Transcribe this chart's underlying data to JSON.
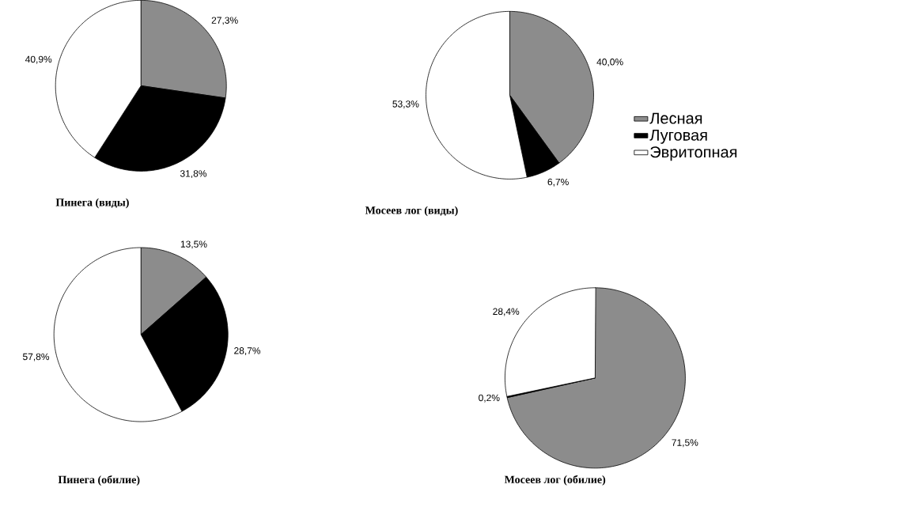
{
  "chart_data": [
    {
      "type": "pie",
      "title": "Пинега (виды)",
      "categories": [
        "Лесная",
        "Луговая",
        "Эвритопная"
      ],
      "values": [
        27.3,
        31.8,
        40.9
      ],
      "value_labels": [
        "27,3%",
        "31,8%",
        "40,9%"
      ],
      "colors": [
        "#8c8c8c",
        "#000000",
        "#ffffff"
      ],
      "legend": "right"
    },
    {
      "type": "pie",
      "title": "Мосеев лог (виды)",
      "categories": [
        null,
        null,
        null
      ],
      "values": [
        40.0,
        6.7,
        53.3
      ],
      "value_labels": [
        "40,0%",
        "6,7%",
        "53,3%"
      ],
      "colors": [
        "#8c8c8c",
        "#000000",
        "#ffffff"
      ]
    },
    {
      "type": "pie",
      "title": "Пинега (обилие)",
      "categories": [
        null,
        null,
        null
      ],
      "values": [
        13.5,
        28.7,
        57.8
      ],
      "value_labels": [
        "13,5%",
        "28,7%",
        "57,8%"
      ],
      "colors": [
        "#8c8c8c",
        "#000000",
        "#ffffff"
      ]
    },
    {
      "type": "pie",
      "title": "Мосеев лог (обилие)",
      "categories": [
        null,
        null,
        null
      ],
      "values": [
        71.5,
        0.2,
        28.4
      ],
      "value_labels": [
        "71,5%",
        "0,2%",
        "28,4%"
      ],
      "colors": [
        "#8c8c8c",
        "#000000",
        "#ffffff"
      ]
    }
  ]
}
